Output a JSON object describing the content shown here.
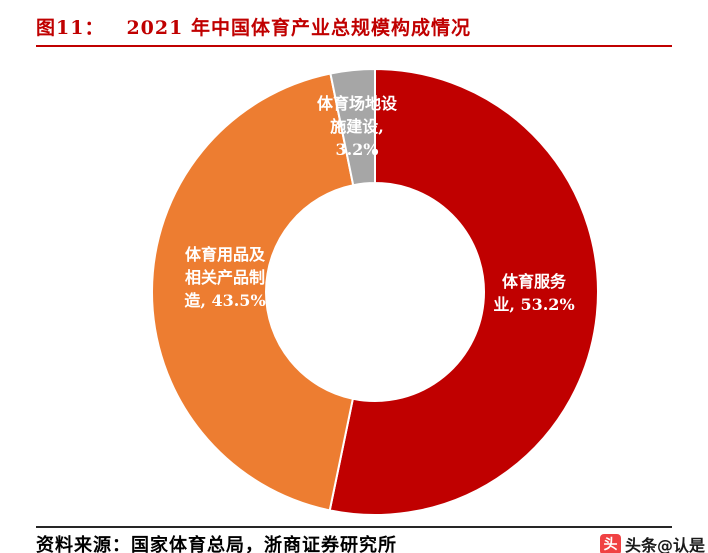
{
  "header": {
    "figure_label": "图11：",
    "title": "2021 年中国体育产业总规模构成情况"
  },
  "chart_data": {
    "type": "pie",
    "donut": true,
    "title": "2021 年中国体育产业总规模构成情况",
    "unit": "%",
    "start_angle_deg": 0,
    "direction": "clockwise",
    "inner_radius_ratio": 0.49,
    "label_color": "#FFFFFF",
    "segments": [
      {
        "key": "sports-services",
        "name": "体育服务业",
        "value": 53.2,
        "color": "#C00000",
        "label_lines": [
          "体育服务",
          "业, 53.2%"
        ]
      },
      {
        "key": "goods-manufacturing",
        "name": "体育用品及相关产品制造",
        "value": 43.5,
        "color": "#ED7D31",
        "label_lines": [
          "体育用品及",
          "相关产品制",
          "造, 43.5%"
        ]
      },
      {
        "key": "venues-construction",
        "name": "体育场地设施建设",
        "value": 3.2,
        "color": "#A6A6A6",
        "label_lines": [
          "体育场地设",
          "施建设,",
          "3.2%"
        ]
      }
    ]
  },
  "footer": {
    "source": "资料来源：国家体育总局，浙商证券研究所",
    "watermark": {
      "icon_glyph": "头",
      "text": "头条@认是"
    }
  },
  "colors": {
    "accent_red": "#C00000",
    "header_rule": "#C00000",
    "footer_rule": "#262626",
    "watermark_red": "#F04143",
    "background": "#FFFFFF"
  }
}
